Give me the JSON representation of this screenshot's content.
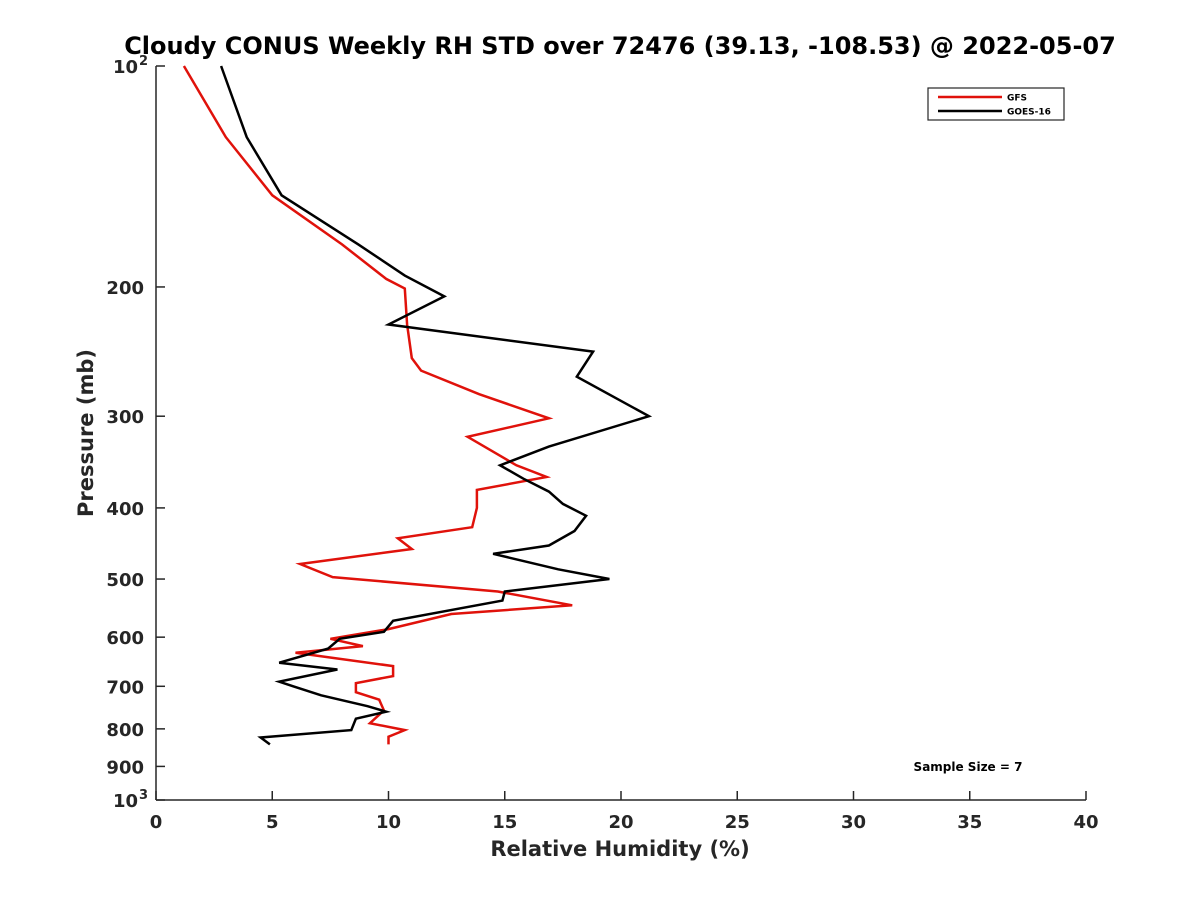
{
  "chart_data": {
    "type": "line",
    "title": "Cloudy CONUS Weekly RH STD over 72476 (39.13, -108.53) @ 2022-05-07",
    "xlabel": "Relative Humidity (%)",
    "ylabel": "Pressure (mb)",
    "xlim": [
      0,
      40
    ],
    "ylim": [
      100,
      1000
    ],
    "y_scale": "log",
    "y_reversed": true,
    "x_ticks": [
      "0",
      "5",
      "10",
      "15",
      "20",
      "25",
      "30",
      "35",
      "40"
    ],
    "y_ticks": [
      {
        "value": 100,
        "label": "10",
        "exp": "2"
      },
      {
        "value": 200,
        "label": "200",
        "exp": ""
      },
      {
        "value": 300,
        "label": "300",
        "exp": ""
      },
      {
        "value": 400,
        "label": "400",
        "exp": ""
      },
      {
        "value": 500,
        "label": "500",
        "exp": ""
      },
      {
        "value": 600,
        "label": "600",
        "exp": ""
      },
      {
        "value": 700,
        "label": "700",
        "exp": ""
      },
      {
        "value": 800,
        "label": "800",
        "exp": ""
      },
      {
        "value": 900,
        "label": "900",
        "exp": ""
      },
      {
        "value": 1000,
        "label": "10",
        "exp": "3"
      }
    ],
    "grid": false,
    "legend_position": "top-right",
    "annotation": "Sample Size = 7",
    "series": [
      {
        "name": "GFS",
        "color": "#e0120b",
        "points": [
          [
            1.2,
            100
          ],
          [
            3.0,
            125
          ],
          [
            5.0,
            150
          ],
          [
            8.0,
            175
          ],
          [
            9.9,
            195
          ],
          [
            10.7,
            201
          ],
          [
            10.8,
            225
          ],
          [
            11.0,
            250
          ],
          [
            11.4,
            260
          ],
          [
            13.9,
            280
          ],
          [
            16.9,
            302
          ],
          [
            13.4,
            320
          ],
          [
            15.5,
            350
          ],
          [
            16.8,
            363
          ],
          [
            13.8,
            378
          ],
          [
            13.8,
            400
          ],
          [
            13.6,
            425
          ],
          [
            10.4,
            440
          ],
          [
            11.0,
            455
          ],
          [
            6.2,
            477
          ],
          [
            7.6,
            497
          ],
          [
            14.7,
            520
          ],
          [
            17.9,
            543
          ],
          [
            12.7,
            558
          ],
          [
            10.0,
            585
          ],
          [
            7.5,
            603
          ],
          [
            8.9,
            617
          ],
          [
            6.0,
            630
          ],
          [
            10.2,
            657
          ],
          [
            10.2,
            678
          ],
          [
            8.6,
            693
          ],
          [
            8.6,
            713
          ],
          [
            9.6,
            730
          ],
          [
            9.8,
            755
          ],
          [
            9.2,
            786
          ],
          [
            10.7,
            803
          ],
          [
            10.0,
            820
          ],
          [
            10.0,
            840
          ]
        ]
      },
      {
        "name": "GOES-16",
        "color": "#000000",
        "points": [
          [
            2.8,
            100
          ],
          [
            3.9,
            125
          ],
          [
            5.4,
            150
          ],
          [
            8.7,
            175
          ],
          [
            10.7,
            193
          ],
          [
            12.4,
            206
          ],
          [
            10.0,
            225
          ],
          [
            18.8,
            245
          ],
          [
            18.1,
            265
          ],
          [
            21.2,
            300
          ],
          [
            16.9,
            330
          ],
          [
            14.8,
            350
          ],
          [
            15.8,
            365
          ],
          [
            16.9,
            380
          ],
          [
            17.5,
            395
          ],
          [
            18.5,
            410
          ],
          [
            18.0,
            430
          ],
          [
            16.9,
            450
          ],
          [
            14.5,
            462
          ],
          [
            17.3,
            485
          ],
          [
            19.5,
            500
          ],
          [
            15.0,
            520
          ],
          [
            14.9,
            535
          ],
          [
            10.2,
            570
          ],
          [
            9.8,
            590
          ],
          [
            7.9,
            603
          ],
          [
            7.4,
            622
          ],
          [
            5.3,
            650
          ],
          [
            7.8,
            664
          ],
          [
            5.3,
            690
          ],
          [
            5.9,
            700
          ],
          [
            7.1,
            720
          ],
          [
            9.1,
            745
          ],
          [
            9.9,
            758
          ],
          [
            8.6,
            775
          ],
          [
            8.4,
            803
          ],
          [
            4.5,
            822
          ],
          [
            4.9,
            840
          ]
        ]
      }
    ]
  }
}
